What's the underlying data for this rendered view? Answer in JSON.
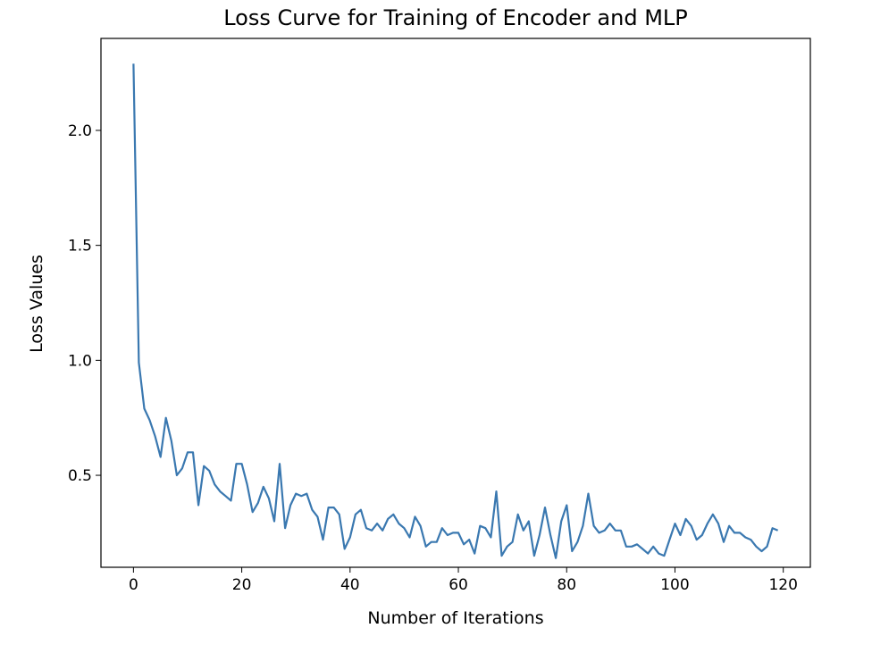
{
  "chart_data": {
    "type": "line",
    "title": "Loss Curve for Training of Encoder and MLP",
    "xlabel": "Number of Iterations",
    "ylabel": "Loss Values",
    "xlim": [
      -6,
      125
    ],
    "ylim": [
      0.1,
      2.4
    ],
    "xticks": [
      0,
      20,
      40,
      60,
      80,
      100,
      120
    ],
    "yticks": [
      0.5,
      1.0,
      1.5,
      2.0
    ],
    "xtick_labels": [
      "0",
      "20",
      "40",
      "60",
      "80",
      "100",
      "120"
    ],
    "ytick_labels": [
      "0.5",
      "1.0",
      "1.5",
      "2.0"
    ],
    "grid": false,
    "legend": "none",
    "line_color": "#3a78b0",
    "series": [
      {
        "x": [
          0,
          1,
          2,
          3,
          4,
          5,
          6,
          7,
          8,
          9,
          10,
          11,
          12,
          13,
          14,
          15,
          16,
          17,
          18,
          19,
          20,
          21,
          22,
          23,
          24,
          25,
          26,
          27,
          28,
          29,
          30,
          31,
          32,
          33,
          34,
          35,
          36,
          37,
          38,
          39,
          40,
          41,
          42,
          43,
          44,
          45,
          46,
          47,
          48,
          49,
          50,
          51,
          52,
          53,
          54,
          55,
          56,
          57,
          58,
          59,
          60,
          61,
          62,
          63,
          64,
          65,
          66,
          67,
          68,
          69,
          70,
          71,
          72,
          73,
          74,
          75,
          76,
          77,
          78,
          79,
          80,
          81,
          82,
          83,
          84,
          85,
          86,
          87,
          88,
          89,
          90,
          91,
          92,
          93,
          94,
          95,
          96,
          97,
          98,
          99,
          100,
          101,
          102,
          103,
          104,
          105,
          106,
          107,
          108,
          109,
          110,
          111,
          112,
          113,
          114,
          115,
          116,
          117,
          118,
          119
        ],
        "values": [
          2.29,
          0.99,
          0.79,
          0.74,
          0.67,
          0.58,
          0.75,
          0.65,
          0.5,
          0.53,
          0.6,
          0.6,
          0.37,
          0.54,
          0.52,
          0.46,
          0.43,
          0.41,
          0.39,
          0.55,
          0.55,
          0.46,
          0.34,
          0.38,
          0.45,
          0.4,
          0.3,
          0.55,
          0.27,
          0.37,
          0.42,
          0.41,
          0.42,
          0.35,
          0.32,
          0.22,
          0.36,
          0.36,
          0.33,
          0.18,
          0.23,
          0.33,
          0.35,
          0.27,
          0.26,
          0.29,
          0.26,
          0.31,
          0.33,
          0.29,
          0.27,
          0.23,
          0.32,
          0.28,
          0.19,
          0.21,
          0.21,
          0.27,
          0.24,
          0.25,
          0.25,
          0.2,
          0.22,
          0.16,
          0.28,
          0.27,
          0.23,
          0.43,
          0.15,
          0.19,
          0.21,
          0.33,
          0.26,
          0.3,
          0.15,
          0.24,
          0.36,
          0.24,
          0.14,
          0.3,
          0.37,
          0.17,
          0.21,
          0.28,
          0.42,
          0.28,
          0.25,
          0.26,
          0.29,
          0.26,
          0.26,
          0.19,
          0.19,
          0.2,
          0.18,
          0.16,
          0.19,
          0.16,
          0.15,
          0.22,
          0.29,
          0.24,
          0.31,
          0.28,
          0.22,
          0.24,
          0.29,
          0.33,
          0.29,
          0.21,
          0.28,
          0.25,
          0.25,
          0.23,
          0.22,
          0.19,
          0.17,
          0.19,
          0.27,
          0.26
        ]
      }
    ]
  }
}
